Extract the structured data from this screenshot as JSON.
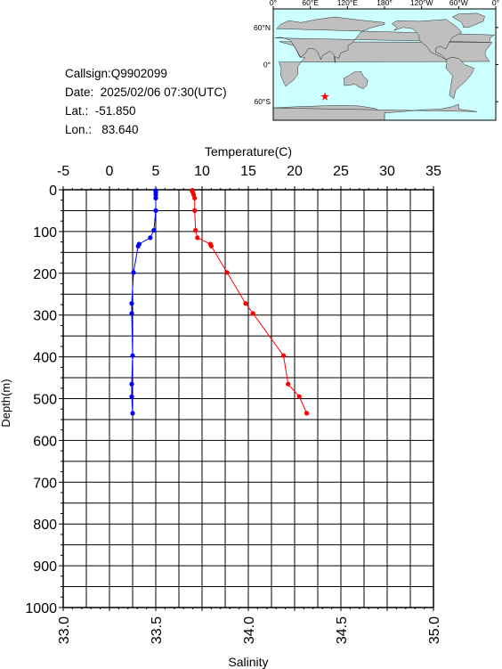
{
  "station": {
    "callsign": "Callsign:Q9902099",
    "date": "Date:  2025/02/06 07:30(UTC)",
    "lat": "Lat.:  -51.850",
    "lon": "Lon.:   83.640"
  },
  "map": {
    "lon_labels": [
      "0°",
      "60°E",
      "120°E",
      "180°",
      "120°W",
      "60°W",
      "0°"
    ],
    "lat_labels": [
      "60°N",
      "0°",
      "60°S"
    ],
    "marker": {
      "lon": 83.64,
      "lat": -51.85,
      "color": "#ff0000"
    },
    "ocean_color": "#ccffff",
    "land_color": "#bfbfbf"
  },
  "chart_data": {
    "type": "line",
    "ylabel": "Depth(m)",
    "y_ticks": [
      0,
      100,
      200,
      300,
      400,
      500,
      600,
      700,
      800,
      900,
      1000
    ],
    "ylim": [
      0,
      1000
    ],
    "y_inverted": true,
    "grid": true,
    "temperature_axis": {
      "label": "Temperature(C)",
      "position": "top",
      "xlim": [
        -5,
        35
      ],
      "ticks": [
        -5,
        0,
        5,
        10,
        15,
        20,
        25,
        30,
        35
      ]
    },
    "salinity_axis": {
      "label": "Salinity",
      "position": "bottom",
      "xlim": [
        33.0,
        35.0
      ],
      "ticks": [
        "33.0",
        "33.5",
        "34.0",
        "34.5",
        "35.0"
      ]
    },
    "series": [
      {
        "axis": "temperature",
        "color": "#ff0000",
        "points": [
          [
            8.9,
            2
          ],
          [
            9.0,
            6
          ],
          [
            9.1,
            12
          ],
          [
            9.2,
            20
          ],
          [
            9.2,
            50
          ],
          [
            9.3,
            97
          ],
          [
            9.5,
            115
          ],
          [
            10.9,
            130
          ],
          [
            11.0,
            135
          ],
          [
            12.7,
            198
          ],
          [
            14.7,
            272
          ],
          [
            15.5,
            296
          ],
          [
            18.8,
            397
          ],
          [
            19.3,
            465
          ],
          [
            20.5,
            495
          ],
          [
            21.3,
            535
          ]
        ]
      },
      {
        "axis": "salinity",
        "color": "#0000ff",
        "points": [
          [
            33.5,
            2
          ],
          [
            33.5,
            6
          ],
          [
            33.5,
            12
          ],
          [
            33.5,
            20
          ],
          [
            33.5,
            50
          ],
          [
            33.49,
            97
          ],
          [
            33.47,
            115
          ],
          [
            33.41,
            130
          ],
          [
            33.405,
            135
          ],
          [
            33.38,
            198
          ],
          [
            33.37,
            272
          ],
          [
            33.37,
            296
          ],
          [
            33.375,
            397
          ],
          [
            33.37,
            465
          ],
          [
            33.37,
            495
          ],
          [
            33.375,
            535
          ]
        ]
      }
    ]
  }
}
